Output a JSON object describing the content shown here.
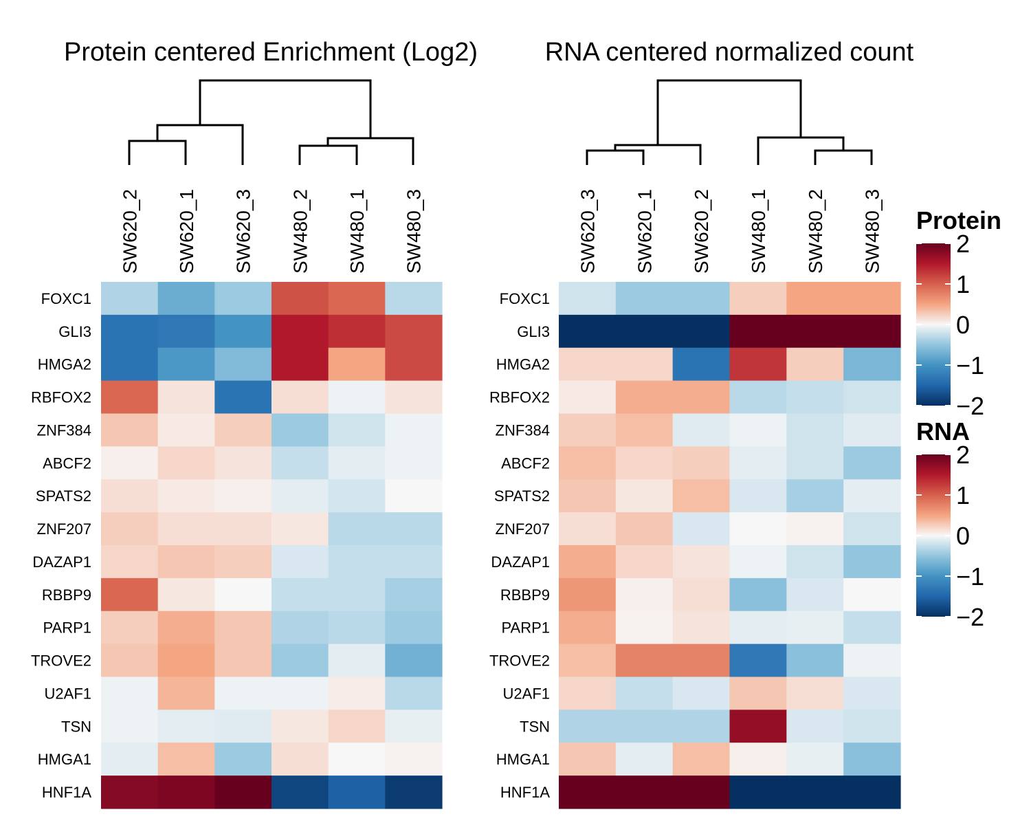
{
  "chart_data": [
    {
      "type": "heatmap",
      "title": "Protein centered Enrichment (Log2)",
      "columns": [
        "SW620_2",
        "SW620_1",
        "SW620_3",
        "SW480_2",
        "SW480_1",
        "SW480_3"
      ],
      "rows": [
        "FOXC1",
        "GLI3",
        "HMGA2",
        "RBFOX2",
        "ZNF384",
        "ABCF2",
        "SPATS2",
        "ZNF207",
        "DAZAP1",
        "RBBP9",
        "PARP1",
        "TROVE2",
        "U2AF1",
        "TSN",
        "HMGA1",
        "HNF1A"
      ],
      "values": [
        [
          -0.35,
          -0.75,
          -0.45,
          1.1,
          0.95,
          -0.3
        ],
        [
          -1.35,
          -1.3,
          -1.0,
          1.5,
          1.35,
          1.15
        ],
        [
          -1.35,
          -0.95,
          -0.6,
          1.5,
          0.5,
          1.15
        ],
        [
          0.95,
          0.12,
          -1.35,
          0.15,
          -0.05,
          0.12
        ],
        [
          0.3,
          0.08,
          0.25,
          -0.45,
          -0.2,
          -0.05
        ],
        [
          0.05,
          0.2,
          0.12,
          -0.25,
          -0.1,
          -0.05
        ],
        [
          0.15,
          0.08,
          0.05,
          -0.1,
          -0.18,
          0.0
        ],
        [
          0.25,
          0.15,
          0.15,
          0.1,
          -0.3,
          -0.3
        ],
        [
          0.2,
          0.3,
          0.25,
          -0.15,
          -0.25,
          -0.25
        ],
        [
          0.95,
          0.1,
          0.0,
          -0.25,
          -0.25,
          -0.4
        ],
        [
          0.25,
          0.45,
          0.3,
          -0.35,
          -0.3,
          -0.45
        ],
        [
          0.3,
          0.5,
          0.3,
          -0.45,
          -0.1,
          -0.7
        ],
        [
          -0.05,
          0.4,
          -0.05,
          -0.05,
          0.07,
          -0.3
        ],
        [
          -0.05,
          -0.1,
          -0.12,
          0.1,
          0.2,
          -0.08
        ],
        [
          -0.1,
          0.35,
          -0.45,
          0.15,
          0.0,
          0.03
        ],
        [
          1.8,
          1.85,
          2.1,
          -1.8,
          -1.55,
          -1.9
        ]
      ],
      "colorbar": {
        "title": "Protein",
        "range": [
          -2,
          2
        ],
        "ticks": [
          2,
          1,
          0,
          -1,
          -2
        ],
        "tick_labels": [
          "2",
          "1",
          "0",
          "−1",
          "−2"
        ]
      }
    },
    {
      "type": "heatmap",
      "title": "RNA centered normalized count",
      "columns": [
        "SW620_3",
        "SW620_1",
        "SW620_2",
        "SW480_1",
        "SW480_2",
        "SW480_3"
      ],
      "rows": [
        "FOXC1",
        "GLI3",
        "HMGA2",
        "RBFOX2",
        "ZNF384",
        "ABCF2",
        "SPATS2",
        "ZNF207",
        "DAZAP1",
        "RBBP9",
        "PARP1",
        "TROVE2",
        "U2AF1",
        "TSN",
        "HMGA1",
        "HNF1A"
      ],
      "values": [
        [
          -0.2,
          -0.45,
          -0.45,
          0.25,
          0.5,
          0.5
        ],
        [
          -2.0,
          -2.0,
          -2.0,
          2.0,
          2.0,
          2.0
        ],
        [
          0.2,
          0.2,
          -1.35,
          1.3,
          0.25,
          -0.65
        ],
        [
          0.08,
          0.45,
          0.45,
          -0.3,
          -0.25,
          -0.2
        ],
        [
          0.25,
          0.35,
          -0.12,
          -0.05,
          -0.2,
          -0.12
        ],
        [
          0.35,
          0.2,
          0.25,
          -0.1,
          -0.2,
          -0.45
        ],
        [
          0.3,
          0.1,
          0.35,
          -0.15,
          -0.4,
          -0.1
        ],
        [
          0.15,
          0.3,
          -0.15,
          0.0,
          0.03,
          -0.2
        ],
        [
          0.45,
          0.2,
          0.12,
          -0.05,
          -0.2,
          -0.5
        ],
        [
          0.6,
          0.05,
          0.15,
          -0.55,
          -0.15,
          0.0
        ],
        [
          0.45,
          0.03,
          0.12,
          -0.1,
          -0.08,
          -0.25
        ],
        [
          0.35,
          0.75,
          0.75,
          -1.3,
          -0.55,
          -0.05
        ],
        [
          0.2,
          -0.25,
          -0.15,
          0.3,
          0.15,
          -0.15
        ],
        [
          -0.35,
          -0.35,
          -0.35,
          1.7,
          -0.15,
          -0.2
        ],
        [
          0.3,
          -0.1,
          0.35,
          0.05,
          -0.08,
          -0.55
        ],
        [
          2.0,
          2.0,
          2.0,
          -2.0,
          -2.0,
          -2.0
        ]
      ],
      "colorbar": {
        "title": "RNA",
        "range": [
          -2,
          2
        ],
        "ticks": [
          2,
          1,
          0,
          -1,
          -2
        ],
        "tick_labels": [
          "2",
          "1",
          "0",
          "−1",
          "−2"
        ]
      }
    }
  ]
}
